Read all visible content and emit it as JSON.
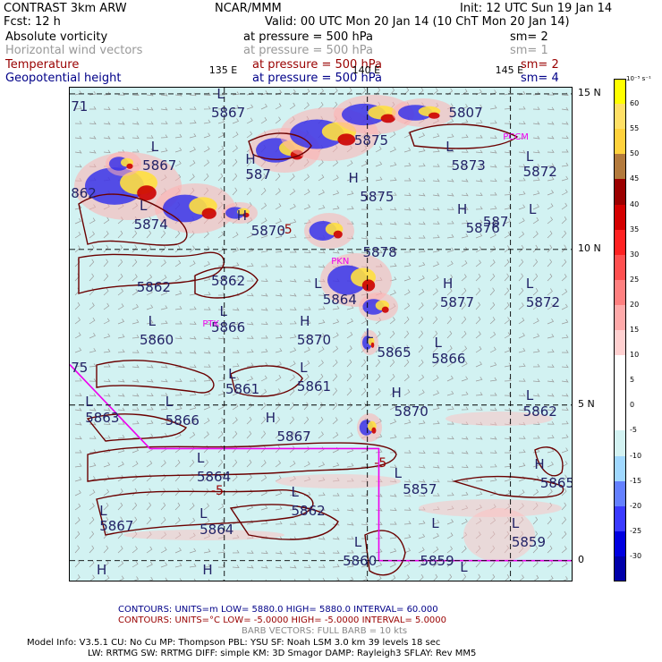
{
  "header": {
    "line1": {
      "left": "CONTRAST  3km ARW",
      "center": "NCAR/MMM",
      "right": "Init: 12 UTC Sun 19 Jan 14"
    },
    "line2": {
      "left": "Fcst:    12 h",
      "right": "Valid: 00 UTC Mon 20 Jan 14 (10 ChT Mon 20 Jan 14)"
    },
    "fields": [
      {
        "name": "Absolute vorticity",
        "pressure": "at pressure =  500 hPa",
        "sm": "sm= 2",
        "color": "#000000"
      },
      {
        "name": "Horizontal wind vectors",
        "pressure": "at pressure =  500 hPa",
        "sm": "sm= 1",
        "color": "#999999"
      },
      {
        "name": "Temperature",
        "pressure": "at pressure =  500 hPa",
        "sm": "sm= 2",
        "color": "#990000"
      },
      {
        "name": "Geopotential height",
        "pressure": "at pressure =  500 hPa",
        "sm": "sm= 4",
        "color": "#000088"
      }
    ]
  },
  "map": {
    "lon_labels": [
      "135 E",
      "140 E",
      "145 E"
    ],
    "lat_labels": [
      "15 N",
      "10 N",
      "5 N",
      "0"
    ],
    "place_labels": [
      {
        "text": "PCCM",
        "lon": 144.8,
        "lat": 13.5
      },
      {
        "text": "PKN",
        "lon": 138.8,
        "lat": 9.5
      },
      {
        "text": "PTK",
        "lon": 134.3,
        "lat": 7.5
      }
    ],
    "colors": {
      "background": "#d2f2f2",
      "coastline": "#6b0000",
      "boundary": "#ee00ee",
      "grid": "#000000"
    },
    "height_labels": [
      {
        "text": "5867",
        "lon": 134.6,
        "lat": 14.4
      },
      {
        "text": "5867",
        "lon": 132.2,
        "lat": 12.7
      },
      {
        "text": "5873",
        "lon": 143.0,
        "lat": 12.7
      },
      {
        "text": "5872",
        "lon": 145.5,
        "lat": 12.5
      },
      {
        "text": "5875",
        "lon": 139.8,
        "lat": 11.7
      },
      {
        "text": "5874",
        "lon": 131.9,
        "lat": 10.8
      },
      {
        "text": "5876",
        "lon": 143.5,
        "lat": 10.7
      },
      {
        "text": "5878",
        "lon": 139.9,
        "lat": 9.9
      },
      {
        "text": "5862",
        "lon": 132.0,
        "lat": 8.8
      },
      {
        "text": "5862",
        "lon": 134.6,
        "lat": 9.0
      },
      {
        "text": "5864",
        "lon": 138.5,
        "lat": 8.4
      },
      {
        "text": "5877",
        "lon": 142.6,
        "lat": 8.3
      },
      {
        "text": "5872",
        "lon": 145.6,
        "lat": 8.3
      },
      {
        "text": "5860",
        "lon": 132.1,
        "lat": 7.1
      },
      {
        "text": "5866",
        "lon": 134.6,
        "lat": 7.5
      },
      {
        "text": "5870",
        "lon": 137.6,
        "lat": 7.1
      },
      {
        "text": "5865",
        "lon": 140.4,
        "lat": 6.7
      },
      {
        "text": "5866",
        "lon": 142.3,
        "lat": 6.5
      },
      {
        "text": "5861",
        "lon": 135.1,
        "lat": 5.5
      },
      {
        "text": "5861",
        "lon": 137.6,
        "lat": 5.6
      },
      {
        "text": "5870",
        "lon": 141.0,
        "lat": 4.8
      },
      {
        "text": "5863",
        "lon": 130.2,
        "lat": 4.6
      },
      {
        "text": "5866",
        "lon": 133.0,
        "lat": 4.5
      },
      {
        "text": "5867",
        "lon": 136.9,
        "lat": 4.0
      },
      {
        "text": "5862",
        "lon": 145.5,
        "lat": 4.8
      },
      {
        "text": "5864",
        "lon": 134.1,
        "lat": 2.7
      },
      {
        "text": "5857",
        "lon": 141.3,
        "lat": 2.3
      },
      {
        "text": "5862",
        "lon": 137.4,
        "lat": 1.6
      },
      {
        "text": "5865",
        "lon": 146.1,
        "lat": 2.5
      },
      {
        "text": "5867",
        "lon": 130.7,
        "lat": 1.1
      },
      {
        "text": "5864",
        "lon": 134.2,
        "lat": 1.0
      },
      {
        "text": "5859",
        "lon": 145.1,
        "lat": 0.6
      },
      {
        "text": "5860",
        "lon": 139.2,
        "lat": 0.0
      },
      {
        "text": "5859",
        "lon": 141.9,
        "lat": 0.0
      }
    ],
    "extreme_markers": [
      {
        "text": "L",
        "lon": 134.8,
        "lat": 15.0
      },
      {
        "text": "L",
        "lon": 132.5,
        "lat": 13.3
      },
      {
        "text": "H",
        "lon": 135.8,
        "lat": 12.9
      },
      {
        "text": "L",
        "lon": 142.8,
        "lat": 13.3
      },
      {
        "text": "H",
        "lon": 139.4,
        "lat": 12.3
      },
      {
        "text": "L",
        "lon": 145.6,
        "lat": 13.0
      },
      {
        "text": "H",
        "lon": 143.2,
        "lat": 11.3
      },
      {
        "text": "L",
        "lon": 145.7,
        "lat": 11.3
      },
      {
        "text": "L",
        "lon": 132.1,
        "lat": 11.4
      },
      {
        "text": "H",
        "lon": 135.5,
        "lat": 11.1
      },
      {
        "text": "L",
        "lon": 138.2,
        "lat": 8.9
      },
      {
        "text": "H",
        "lon": 142.7,
        "lat": 8.9
      },
      {
        "text": "L",
        "lon": 145.6,
        "lat": 8.9
      },
      {
        "text": "L",
        "lon": 132.4,
        "lat": 7.7
      },
      {
        "text": "L",
        "lon": 134.9,
        "lat": 8.0
      },
      {
        "text": "H",
        "lon": 137.7,
        "lat": 7.7
      },
      {
        "text": "L",
        "lon": 140.0,
        "lat": 7.3
      },
      {
        "text": "L",
        "lon": 142.4,
        "lat": 7.0
      },
      {
        "text": "L",
        "lon": 135.2,
        "lat": 6.0
      },
      {
        "text": "L",
        "lon": 137.7,
        "lat": 6.2
      },
      {
        "text": "H",
        "lon": 140.9,
        "lat": 5.4
      },
      {
        "text": "L",
        "lon": 130.2,
        "lat": 5.1
      },
      {
        "text": "L",
        "lon": 133.0,
        "lat": 5.1
      },
      {
        "text": "H",
        "lon": 136.5,
        "lat": 4.6
      },
      {
        "text": "L",
        "lon": 145.6,
        "lat": 5.3
      },
      {
        "text": "L",
        "lon": 134.1,
        "lat": 3.3
      },
      {
        "text": "L",
        "lon": 137.4,
        "lat": 2.2
      },
      {
        "text": "L",
        "lon": 141.0,
        "lat": 2.8
      },
      {
        "text": "H",
        "lon": 145.9,
        "lat": 3.1
      },
      {
        "text": "L",
        "lon": 130.7,
        "lat": 1.6
      },
      {
        "text": "L",
        "lon": 134.2,
        "lat": 1.5
      },
      {
        "text": "L",
        "lon": 142.3,
        "lat": 1.2
      },
      {
        "text": "L",
        "lon": 145.1,
        "lat": 1.2
      },
      {
        "text": "H",
        "lon": 130.6,
        "lat": -0.3
      },
      {
        "text": "H",
        "lon": 134.3,
        "lat": -0.3
      },
      {
        "text": "L",
        "lon": 139.6,
        "lat": 0.6
      },
      {
        "text": "L",
        "lon": 143.3,
        "lat": -0.2
      }
    ],
    "temp_labels": [
      {
        "text": "-5",
        "lon": 137.0,
        "lat": 10.6
      },
      {
        "text": "-5",
        "lon": 140.3,
        "lat": 3.1
      },
      {
        "text": "-5",
        "lon": 134.6,
        "lat": 2.2
      }
    ],
    "edge_fragments": [
      {
        "text": "71",
        "lon": 129.7,
        "lat": 14.6
      },
      {
        "text": "862",
        "lon": 129.7,
        "lat": 11.8
      },
      {
        "text": "75",
        "lon": 129.7,
        "lat": 6.2
      },
      {
        "text": "5807",
        "lon": 142.9,
        "lat": 14.4
      },
      {
        "text": "5875",
        "lon": 139.6,
        "lat": 13.5
      },
      {
        "text": "587",
        "lon": 135.8,
        "lat": 12.4
      },
      {
        "text": "5870",
        "lon": 136.0,
        "lat": 10.6
      },
      {
        "text": "587",
        "lon": 144.1,
        "lat": 10.9
      }
    ]
  },
  "colorbar": {
    "unit": "10⁻⁵ s⁻¹",
    "levels": [
      "60",
      "55",
      "50",
      "45",
      "40",
      "35",
      "30",
      "25",
      "20",
      "15",
      "10",
      "5",
      "0",
      "-5",
      "-10",
      "-15",
      "-20",
      "-25",
      "-30"
    ],
    "colors": [
      "#ffff00",
      "#ffe066",
      "#ffd23c",
      "#b37a3c",
      "#9b0000",
      "#d40000",
      "#ff2222",
      "#ff5050",
      "#ff8080",
      "#ffaaaa",
      "#ffd0d0",
      "#ffffff",
      "#ffffff",
      "#ffffff",
      "#d2f2f2",
      "#a0d8ff",
      "#6480ff",
      "#3a3aff",
      "#0000e0",
      "#0000aa"
    ]
  },
  "footer": {
    "contours1": "CONTOURS:  UNITS=m   LOW=  5880.0          HIGH=  5880.0          INTERVAL=    60.000",
    "contours2": "CONTOURS:  UNITS=°C   LOW= -5.0000          HIGH= -5.0000          INTERVAL=    5.0000",
    "barbs": "BARB VECTORS:  FULL BARB = 10 kts",
    "model1": "Model Info: V3.5.1     CU: No Cu      MP: Thompson      PBL: YSU       SF: Noah LSM      3.0 km   39 levels    18 sec",
    "model2": "LW: RRTMG     SW: RRTMG    DIFF: simple KM: 3D Smagor DAMP: Rayleigh3   SFLAY: Rev MM5"
  }
}
